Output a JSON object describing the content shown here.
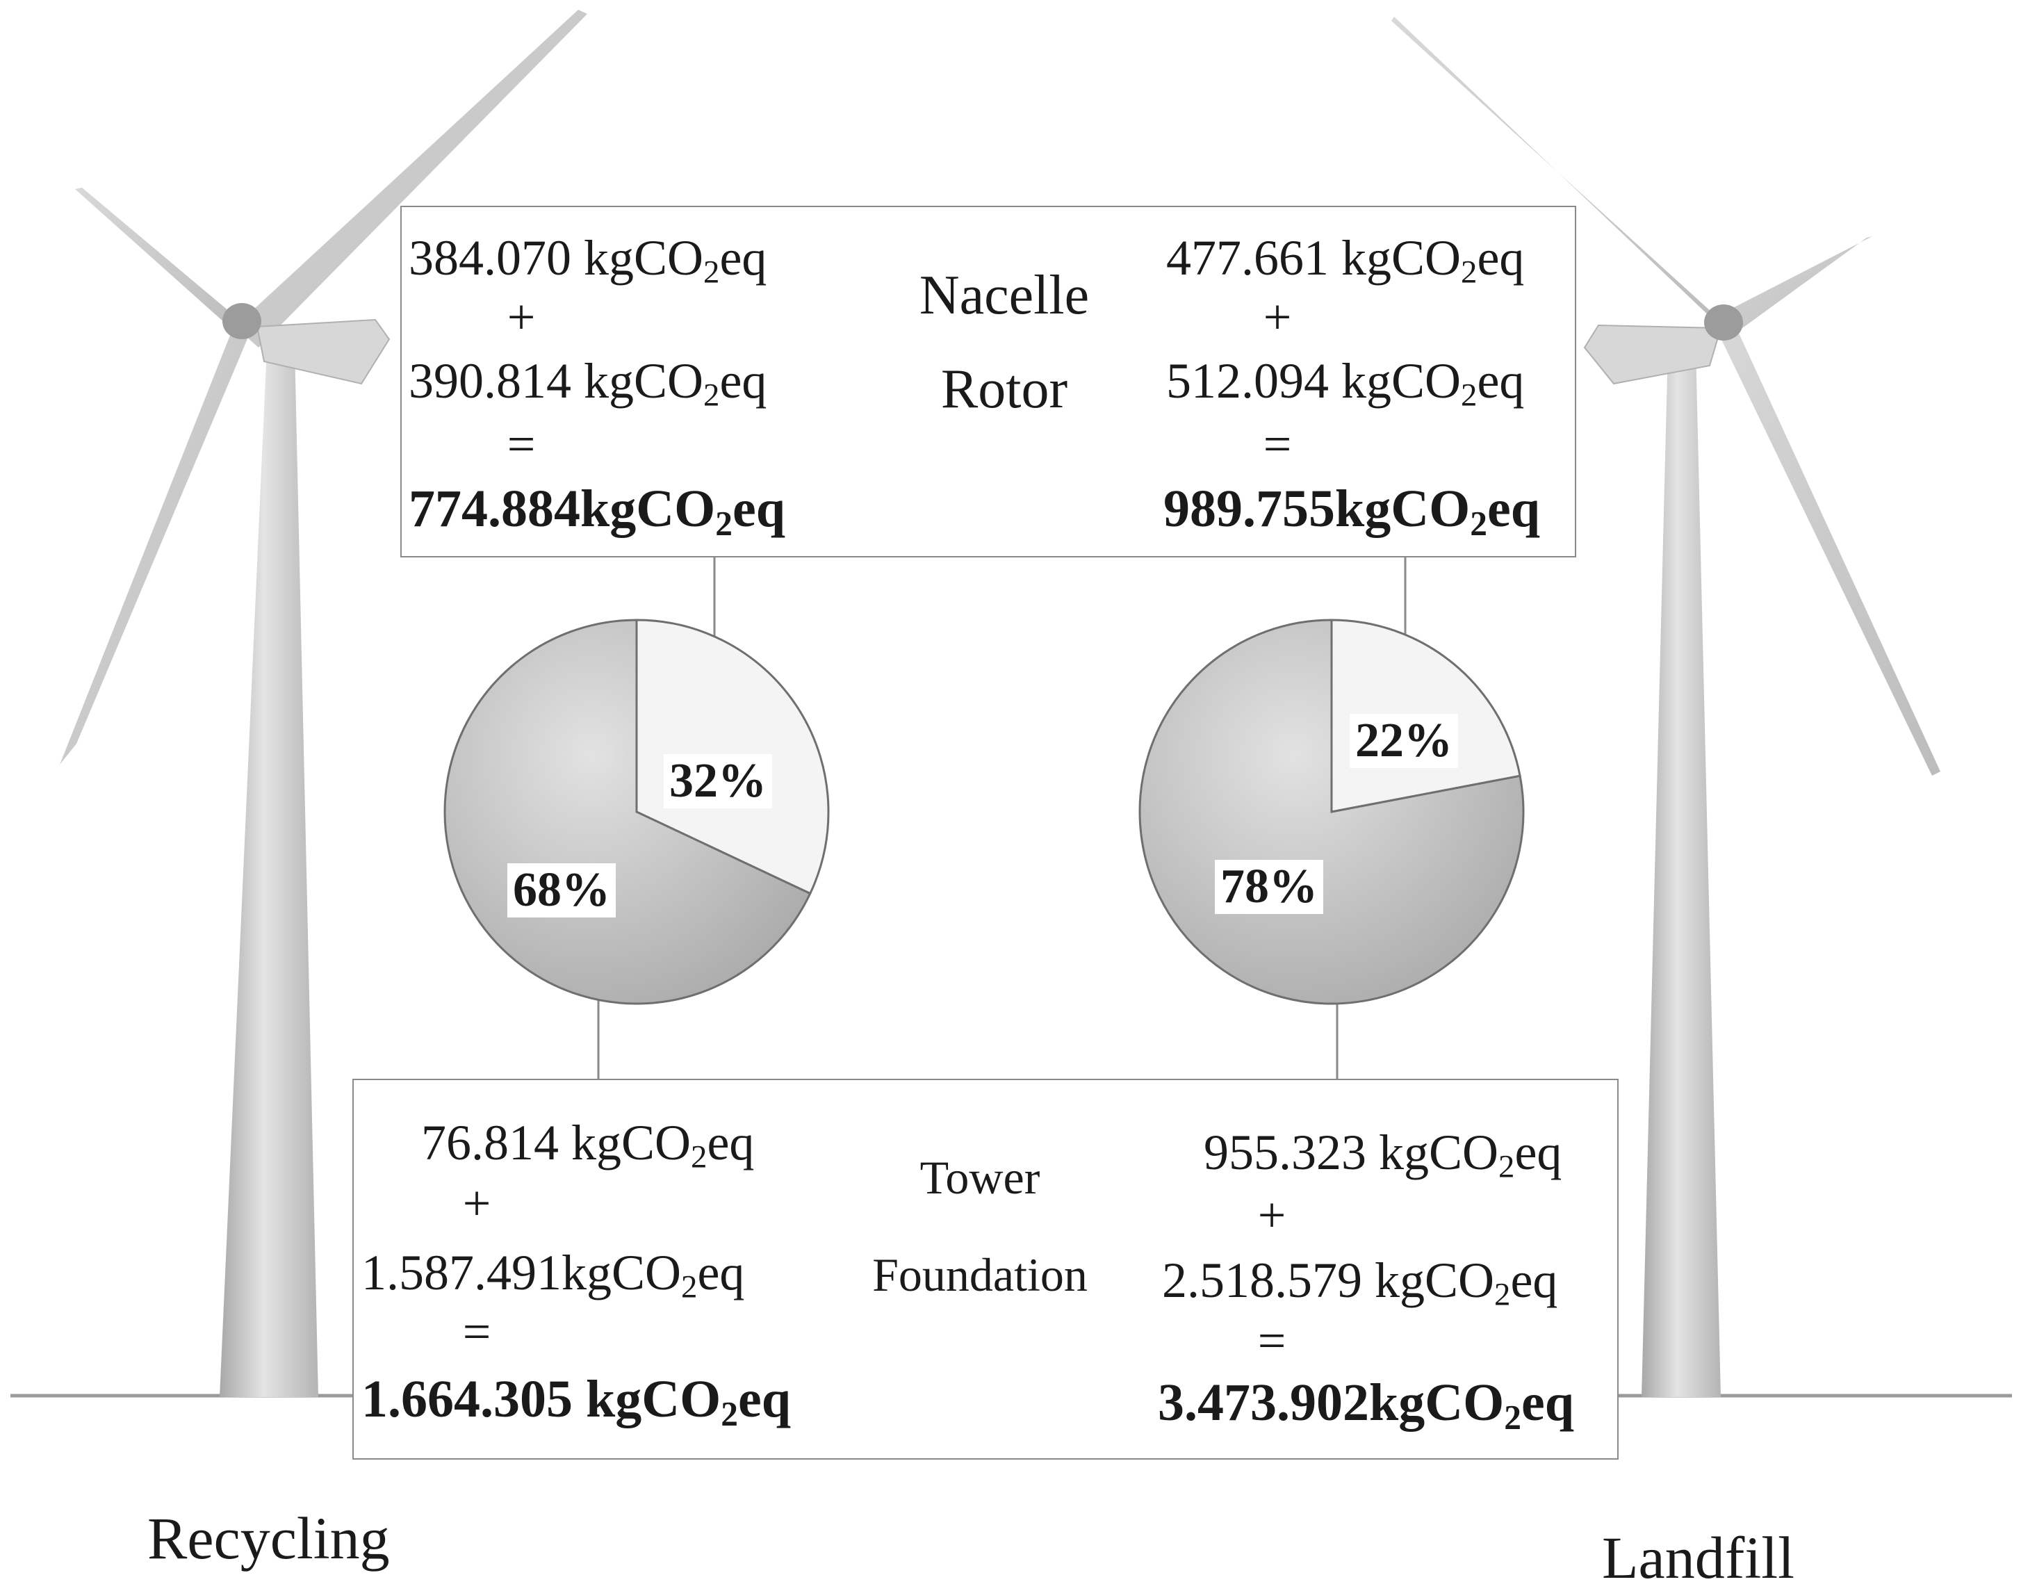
{
  "top_box": {
    "middle_line1": "Nacelle",
    "middle_line2": "Rotor",
    "recycling": {
      "value1": "384.070",
      "value2": "390.814",
      "total": "774.884",
      "plus": "+",
      "equals": "="
    },
    "landfill": {
      "value1": "477.661",
      "value2": "512.094",
      "total": "989.755",
      "plus": "+",
      "equals": "="
    }
  },
  "bottom_box": {
    "middle_line1": "Tower",
    "middle_line2": "Foundation",
    "recycling": {
      "value1": "76.814",
      "value2": "1.587.491",
      "total": "1.664.305",
      "plus": "+",
      "equals": "="
    },
    "landfill": {
      "value1": "955.323",
      "value2": "2.518.579",
      "total": "3.473.902",
      "plus": "+",
      "equals": "="
    }
  },
  "unit": {
    "prefix": "kg",
    "co": "CO",
    "sub": "2",
    "suffix": "eq"
  },
  "labels": {
    "left": "Recycling",
    "right": "Landfill"
  },
  "pies": [
    {
      "name": "recycling-pie",
      "slices": [
        {
          "label": "32%",
          "value": 32,
          "group": "Nacelle + Rotor",
          "color": "#f4f4f4"
        },
        {
          "label": "68%",
          "value": 68,
          "group": "Tower + Foundation",
          "color": "#bdbdbd"
        }
      ]
    },
    {
      "name": "landfill-pie",
      "slices": [
        {
          "label": "22%",
          "value": 22,
          "group": "Nacelle + Rotor",
          "color": "#f4f4f4"
        },
        {
          "label": "78%",
          "value": 78,
          "group": "Tower + Foundation",
          "color": "#bdbdbd"
        }
      ]
    }
  ],
  "colors": {
    "turbine_light": "#e6e6e6",
    "turbine_mid": "#c8c8c8",
    "turbine_dark": "#9e9e9e",
    "box_border": "#8a8a8a",
    "ground": "#9a9a9a"
  }
}
